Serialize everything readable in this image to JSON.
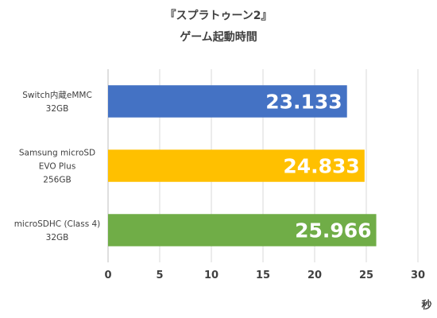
{
  "chart_data": {
    "type": "bar",
    "orientation": "horizontal",
    "title": [
      "『スプラトゥーン2』",
      "ゲーム起動時間"
    ],
    "unit_label": "秒",
    "categories": [
      [
        "Switch内蔵eMMC",
        "32GB"
      ],
      [
        "Samsung microSD",
        "EVO Plus",
        "256GB"
      ],
      [
        "microSDHC (Class 4)",
        "32GB"
      ]
    ],
    "values": [
      23.133,
      24.833,
      25.966
    ],
    "value_labels": [
      "23.133",
      "24.833",
      "25.966"
    ],
    "colors": [
      "#4472C4",
      "#FFC000",
      "#70AD47"
    ],
    "xticks": [
      0,
      5,
      10,
      15,
      20,
      25,
      30
    ],
    "xlim": [
      0,
      30
    ],
    "grid": true
  }
}
